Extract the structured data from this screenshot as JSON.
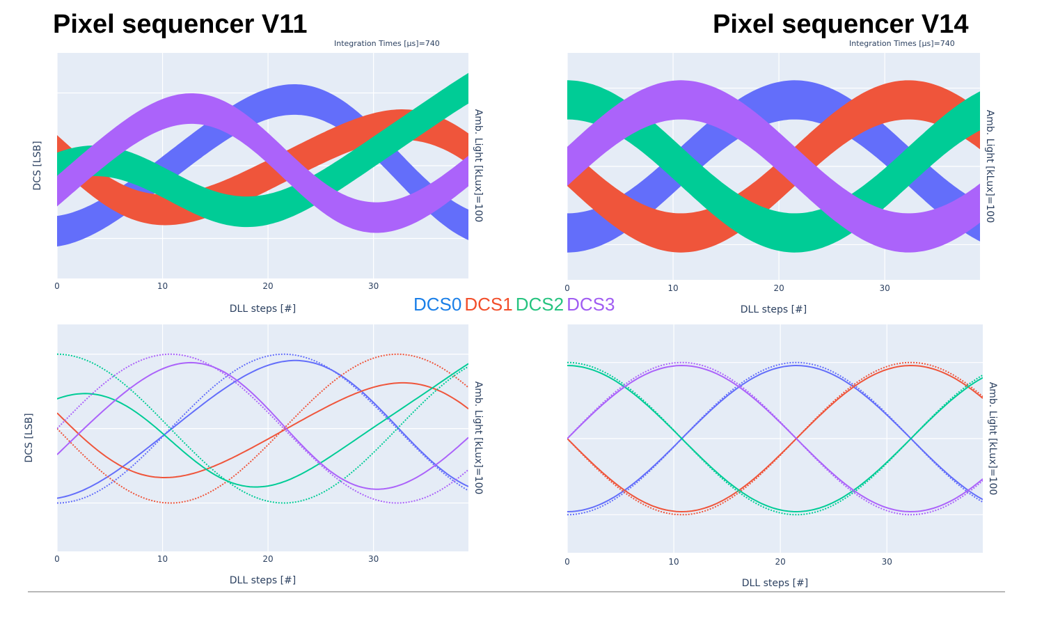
{
  "titles": {
    "left": "Pixel sequencer V11",
    "right": "Pixel sequencer V14"
  },
  "integration_label": "Integration Times [µs]=740",
  "legend": [
    {
      "name": "DCS0",
      "color": "#1a7fe8"
    },
    {
      "name": "DCS1",
      "color": "#f24e2a"
    },
    {
      "name": "DCS2",
      "color": "#26c37f"
    },
    {
      "name": "DCS3",
      "color": "#a05cf2"
    }
  ],
  "colors": {
    "DCS0": "#636efa",
    "DCS1": "#ef553b",
    "DCS2": "#00cc96",
    "DCS3": "#ab63fa",
    "plot_bg": "#e5ecf6"
  },
  "chart_data": [
    {
      "id": "v11-top",
      "type": "line",
      "xlabel": "DLL steps [#]",
      "ylabel": "DCS [LSB]",
      "right_label": "Amb. Light [kLux]=100",
      "annotation": "Integration Times [µs]=740",
      "xlim": [
        0,
        39
      ],
      "ylim": [
        -1.55,
        1.55
      ],
      "xticks": [
        0,
        10,
        20,
        30
      ],
      "style": "band",
      "series": [
        {
          "name": "DCS0",
          "shape": [
            0,
            0.25,
            0.9,
            0
          ],
          "band": 0.42
        },
        {
          "name": "DCS1",
          "shape": [
            0,
            0.3,
            0.7,
            -0.3
          ],
          "band": 0.42
        },
        {
          "name": "DCS2",
          "shape": [
            0,
            0.4,
            0.6,
            0.9
          ],
          "band": 0.42
        },
        {
          "name": "DCS3",
          "shape": [
            0,
            0.3,
            0.9,
            0.5
          ],
          "band": 0.42
        }
      ]
    },
    {
      "id": "v14-top",
      "type": "line",
      "xlabel": "DLL steps [#]",
      "ylabel": "",
      "right_label": "Amb. Light [kLux]=100",
      "annotation": "Integration Times [µs]=740",
      "xlim": [
        0,
        39
      ],
      "ylim": [
        -1.45,
        1.45
      ],
      "xticks": [
        0,
        10,
        20,
        30
      ],
      "style": "band",
      "series": [
        {
          "name": "DCS0",
          "shape": [
            0,
            0,
            0.85,
            0
          ],
          "band": 0.5
        },
        {
          "name": "DCS1",
          "shape": [
            0,
            0,
            0.85,
            0
          ],
          "band": 0.5
        },
        {
          "name": "DCS2",
          "shape": [
            0,
            0,
            0.85,
            0
          ],
          "band": 0.5
        },
        {
          "name": "DCS3",
          "shape": [
            0,
            0,
            0.85,
            0
          ],
          "band": 0.5
        }
      ]
    },
    {
      "id": "v11-bottom",
      "type": "line",
      "xlabel": "DLL steps [#]",
      "ylabel": "DCS [LSB]",
      "right_label": "Amb. Light [kLux]=100",
      "xlim": [
        0,
        39
      ],
      "ylim": [
        -1.65,
        1.4
      ],
      "xticks": [
        0,
        10,
        20,
        30
      ],
      "style": "lines",
      "series": [
        {
          "name": "DCS0",
          "solid": [
            0,
            0.25,
            0.9,
            0.05
          ],
          "dotted": [
            0,
            0,
            1,
            0
          ]
        },
        {
          "name": "DCS1",
          "solid": [
            0,
            0.3,
            0.75,
            -0.3
          ],
          "dotted": [
            0,
            0,
            1,
            0
          ]
        },
        {
          "name": "DCS2",
          "solid": [
            0,
            0.5,
            0.75,
            0.5
          ],
          "dotted": [
            0,
            0,
            1,
            0
          ]
        },
        {
          "name": "DCS3",
          "solid": [
            0,
            0.3,
            1.0,
            0.5
          ],
          "dotted": [
            0,
            0,
            1,
            0
          ]
        }
      ]
    },
    {
      "id": "v14-bottom",
      "type": "line",
      "xlabel": "DLL steps [#]",
      "ylabel": "",
      "right_label": "Amb. Light [kLux]=100",
      "xlim": [
        0,
        39
      ],
      "ylim": [
        -1.5,
        1.5
      ],
      "xticks": [
        0,
        10,
        20,
        30
      ],
      "style": "lines",
      "series": [
        {
          "name": "DCS0",
          "solid": [
            0,
            0,
            0.96,
            0
          ],
          "dotted": [
            0,
            0,
            1,
            0
          ]
        },
        {
          "name": "DCS1",
          "solid": [
            0,
            0,
            0.96,
            0
          ],
          "dotted": [
            0,
            0,
            1,
            0
          ]
        },
        {
          "name": "DCS2",
          "solid": [
            0,
            0,
            0.96,
            0
          ],
          "dotted": [
            0,
            0,
            1,
            0
          ]
        },
        {
          "name": "DCS3",
          "solid": [
            0,
            0,
            0.96,
            0
          ],
          "dotted": [
            0,
            0,
            1,
            0
          ]
        }
      ]
    }
  ]
}
